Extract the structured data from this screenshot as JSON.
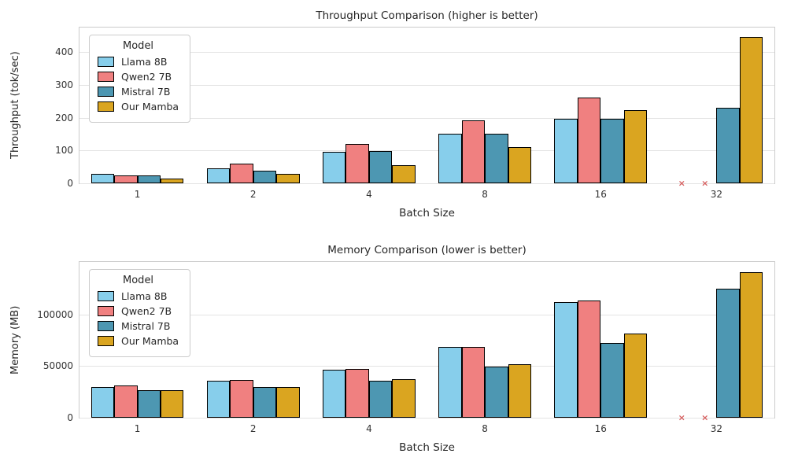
{
  "chart_data": [
    {
      "type": "bar",
      "title": "Throughput Comparison (higher is better)",
      "xlabel": "Batch Size",
      "ylabel": "Throughput (tok/sec)",
      "legend_title": "Model",
      "legend_position": "upper-left",
      "grid": true,
      "categories": [
        "1",
        "2",
        "4",
        "8",
        "16",
        "32"
      ],
      "yticks": [
        0,
        100,
        200,
        300,
        400
      ],
      "ylim": [
        0,
        475
      ],
      "oom_marker_color": "#d65f5f",
      "series": [
        {
          "name": "Llama 8B",
          "color": "#87CEEB",
          "values": [
            28,
            46,
            95,
            152,
            196,
            null
          ]
        },
        {
          "name": "Qwen2 7B",
          "color": "#F08080",
          "values": [
            25,
            60,
            120,
            193,
            262,
            null
          ]
        },
        {
          "name": "Mistral 7B",
          "color": "#4D97B2",
          "values": [
            25,
            39,
            98,
            152,
            196,
            230
          ]
        },
        {
          "name": "Our Mamba",
          "color": "#DAA520",
          "values": [
            14,
            28,
            55,
            110,
            224,
            447
          ]
        }
      ],
      "annotations": "null values rendered as red x (OOM) at baseline"
    },
    {
      "type": "bar",
      "title": "Memory Comparison (lower is better)",
      "xlabel": "Batch Size",
      "ylabel": "Memory (MB)",
      "legend_title": "Model",
      "legend_position": "upper-left",
      "grid": true,
      "categories": [
        "1",
        "2",
        "4",
        "8",
        "16",
        "32"
      ],
      "yticks": [
        0,
        50000,
        100000
      ],
      "ylim": [
        0,
        151000
      ],
      "oom_marker_color": "#d65f5f",
      "series": [
        {
          "name": "Llama 8B",
          "color": "#87CEEB",
          "values": [
            30000,
            35500,
            46500,
            68500,
            112000,
            null
          ]
        },
        {
          "name": "Qwen2 7B",
          "color": "#F08080",
          "values": [
            31500,
            36500,
            47500,
            69000,
            114000,
            null
          ]
        },
        {
          "name": "Mistral 7B",
          "color": "#4D97B2",
          "values": [
            26500,
            29800,
            36000,
            49500,
            72500,
            125000
          ]
        },
        {
          "name": "Our Mamba",
          "color": "#DAA520",
          "values": [
            26500,
            29800,
            37500,
            52000,
            81500,
            141000
          ]
        }
      ],
      "annotations": "null values rendered as red x (OOM) at baseline"
    }
  ]
}
